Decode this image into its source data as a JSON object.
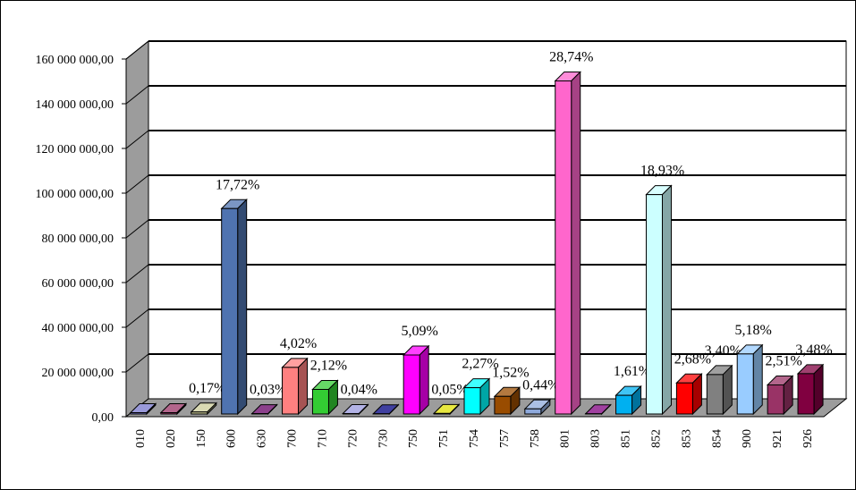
{
  "chart_data": {
    "type": "bar",
    "style": "3d-column",
    "title": "",
    "xlabel": "",
    "ylabel": "",
    "ylim": [
      0,
      160000000
    ],
    "yticks": [
      0,
      20000000,
      40000000,
      60000000,
      80000000,
      100000000,
      120000000,
      140000000,
      160000000
    ],
    "ytick_labels": [
      "0,00",
      "20 000 000,00",
      "40 000 000,00",
      "60 000 000,00",
      "80 000 000,00",
      "100 000 000,00",
      "120 000 000,00",
      "140 000 000,00",
      "160 000 000,00"
    ],
    "grid": true,
    "legend": "none",
    "categories": [
      "010",
      "020",
      "150",
      "600",
      "630",
      "700",
      "710",
      "720",
      "730",
      "750",
      "751",
      "754",
      "757",
      "758",
      "801",
      "803",
      "851",
      "852",
      "853",
      "854",
      "900",
      "921",
      "926"
    ],
    "values": [
      600000,
      600000,
      890000,
      91900000,
      160000,
      20850000,
      11000000,
      210000,
      100000,
      26400000,
      260000,
      11770000,
      7880000,
      2280000,
      149000000,
      100000,
      8350000,
      98150000,
      13900000,
      17630000,
      26860000,
      13010000,
      18040000
    ],
    "labels": [
      "",
      "",
      "0,17%",
      "17,72%",
      "0,03%",
      "4,02%",
      "2,12%",
      "0,04%",
      "",
      "5,09%",
      "0,05%",
      "2,27%",
      "1,52%",
      "0,44%",
      "28,74%",
      "",
      "1,61%",
      "18,93%",
      "2,68%",
      "3,40%",
      "5,18%",
      "2,51%",
      "3,48%"
    ],
    "colors": [
      "#7777CC",
      "#993366",
      "#CCCC99",
      "#4F73B0",
      "#660066",
      "#FF8080",
      "#33CC33",
      "#9999DD",
      "#000080",
      "#FF00FF",
      "#E0E000",
      "#00FFFF",
      "#994C00",
      "#8EA9DB",
      "#FF66CC",
      "#800080",
      "#00B0F0",
      "#CCFFFF",
      "#FF0000",
      "#808080",
      "#99CCFF",
      "#993366",
      "#800040"
    ]
  }
}
